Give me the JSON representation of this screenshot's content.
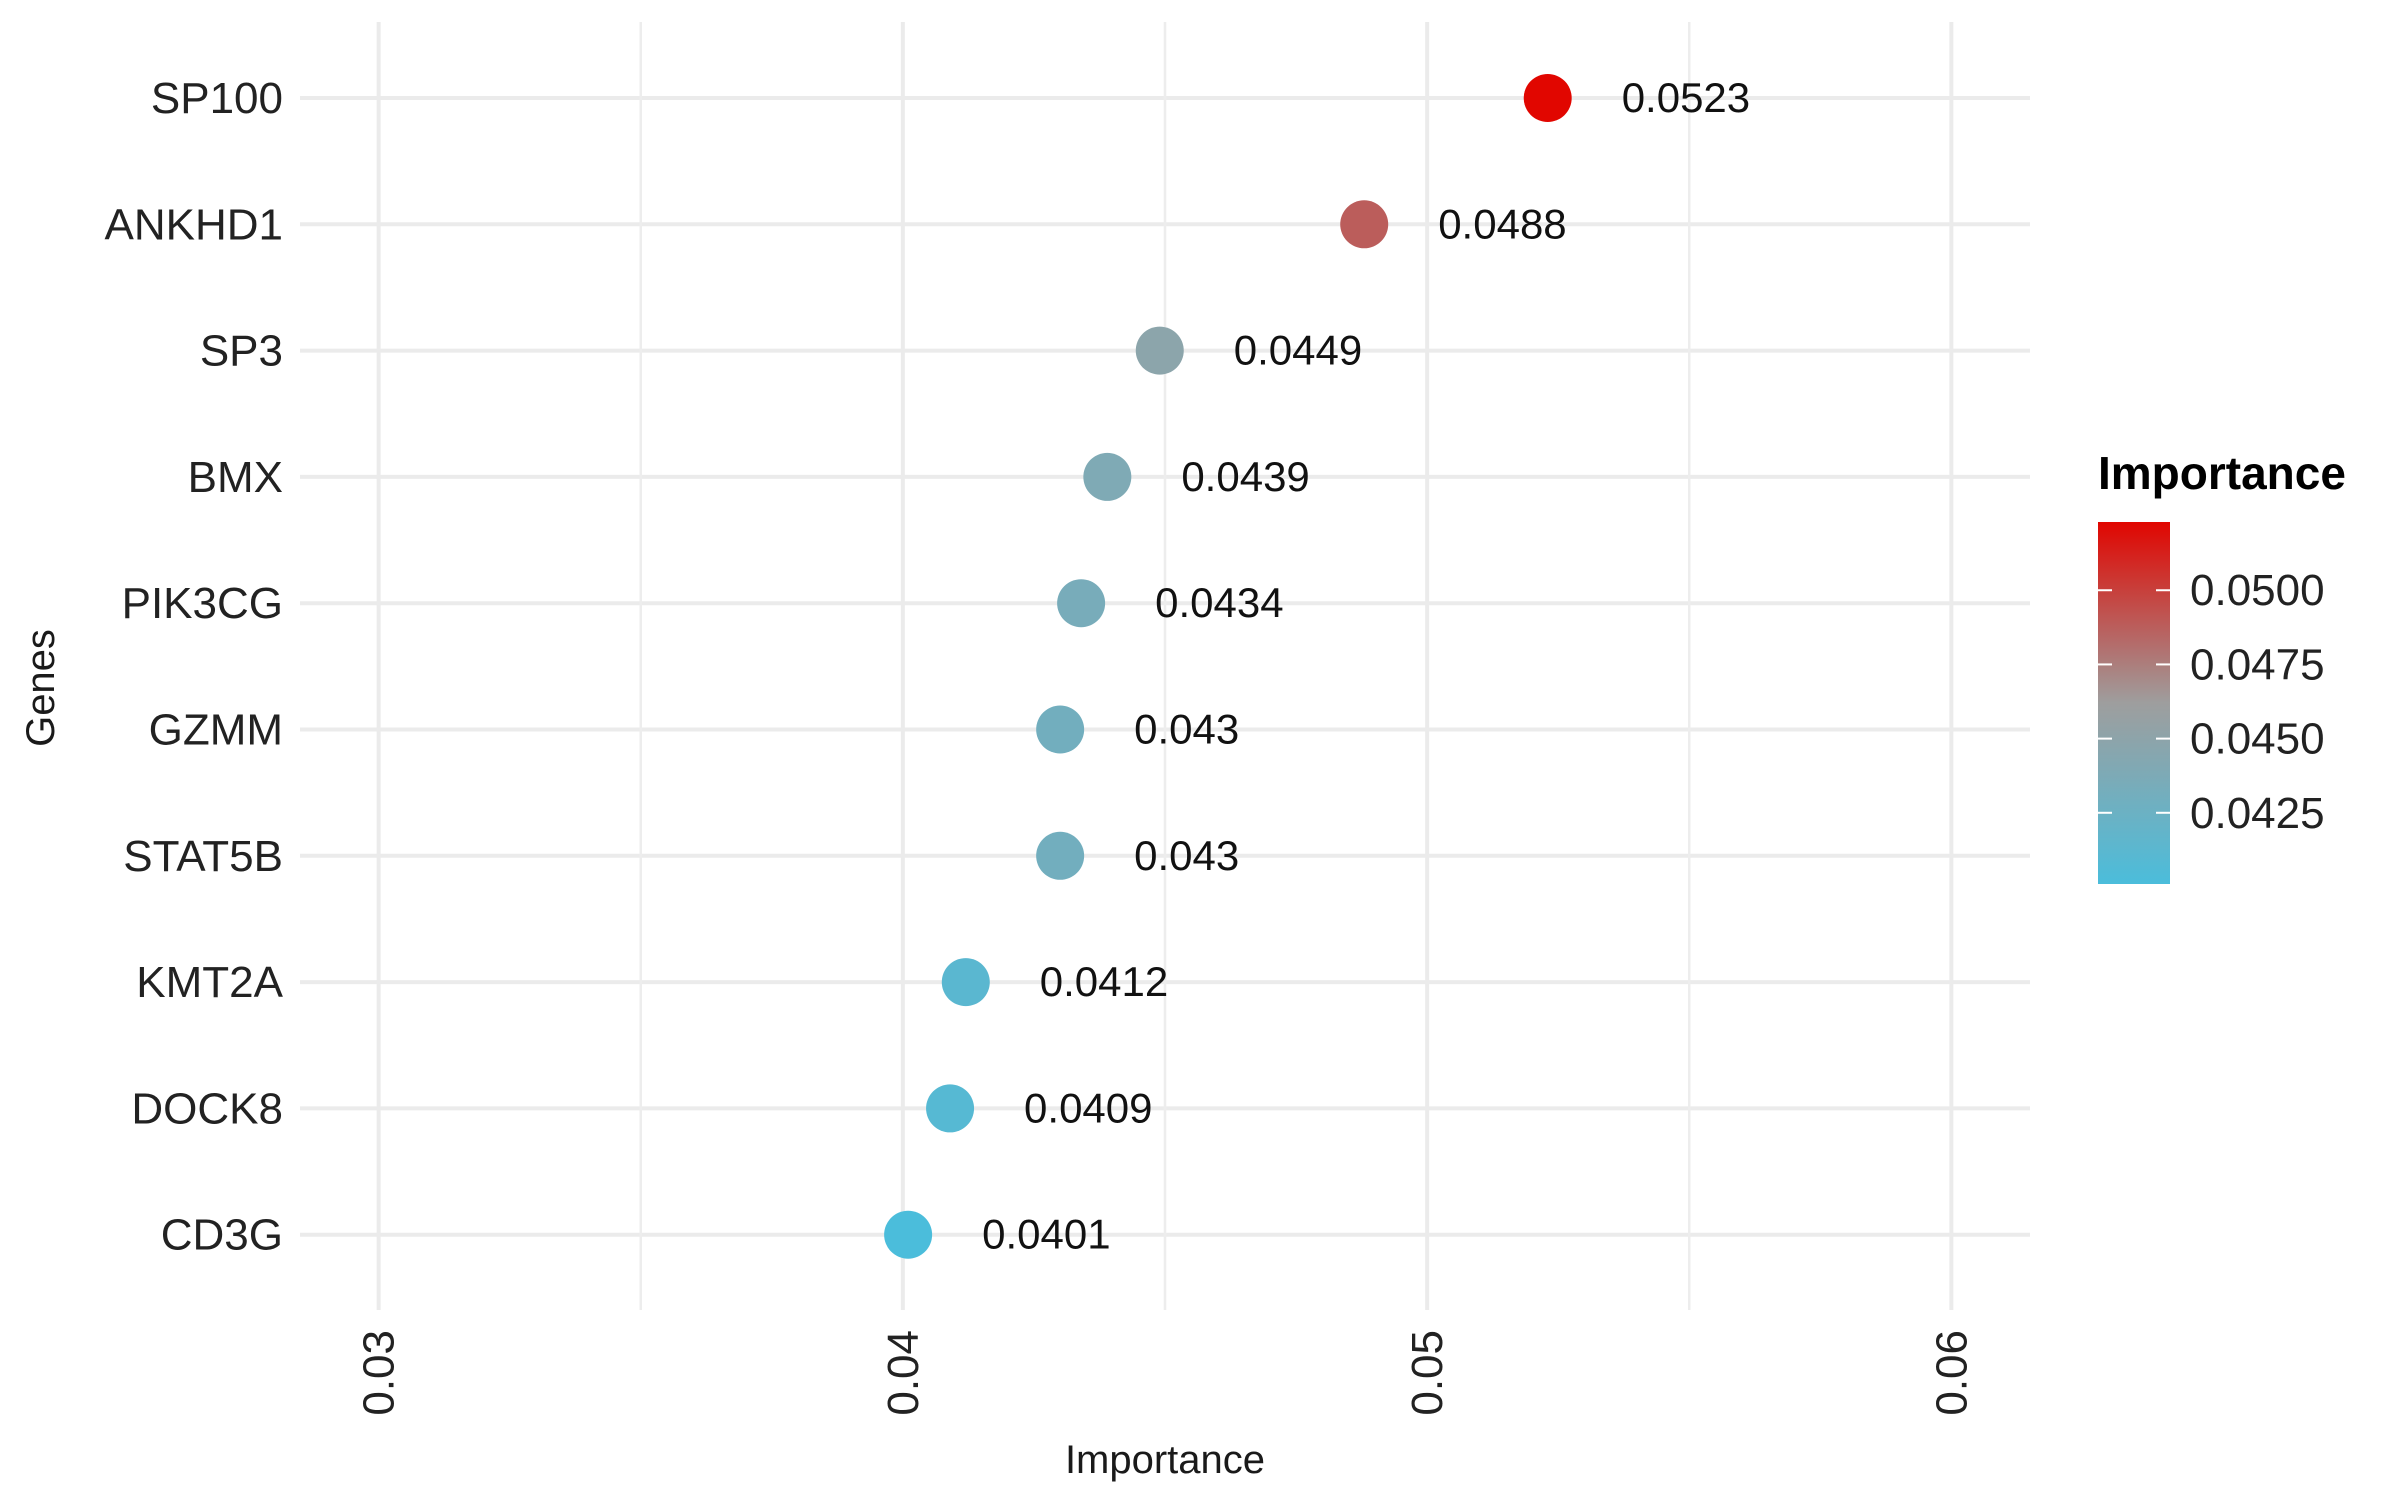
{
  "chart_data": {
    "type": "scatter",
    "title": "",
    "xlabel": "Importance",
    "ylabel": "Genes",
    "xlim": [
      0.0285,
      0.0615
    ],
    "x_ticks": [
      0.03,
      0.04,
      0.05,
      0.06
    ],
    "x_tick_labels": [
      "0.03",
      "0.04",
      "0.05",
      "0.06"
    ],
    "categories": [
      "SP100",
      "ANKHD1",
      "SP3",
      "BMX",
      "PIK3CG",
      "GZMM",
      "STAT5B",
      "KMT2A",
      "DOCK8",
      "CD3G"
    ],
    "values": [
      0.0523,
      0.0488,
      0.0449,
      0.0439,
      0.0434,
      0.043,
      0.043,
      0.0412,
      0.0409,
      0.0401
    ],
    "value_labels": [
      "0.0523",
      "0.0488",
      "0.0449",
      "0.0439",
      "0.0434",
      "0.043",
      "0.043",
      "0.0412",
      "0.0409",
      "0.0401"
    ],
    "grid": true,
    "legend": {
      "title": "Importance",
      "position": "right",
      "type": "color-gradient",
      "range": [
        0.0401,
        0.0523
      ],
      "ticks": [
        0.0425,
        0.045,
        0.0475,
        0.05
      ],
      "tick_labels": [
        "0.0425",
        "0.0450",
        "0.0475",
        "0.0500"
      ]
    },
    "colors": {
      "low": "#4BBDDB",
      "mid": "#9E9E9E",
      "high": "#E10600"
    }
  }
}
